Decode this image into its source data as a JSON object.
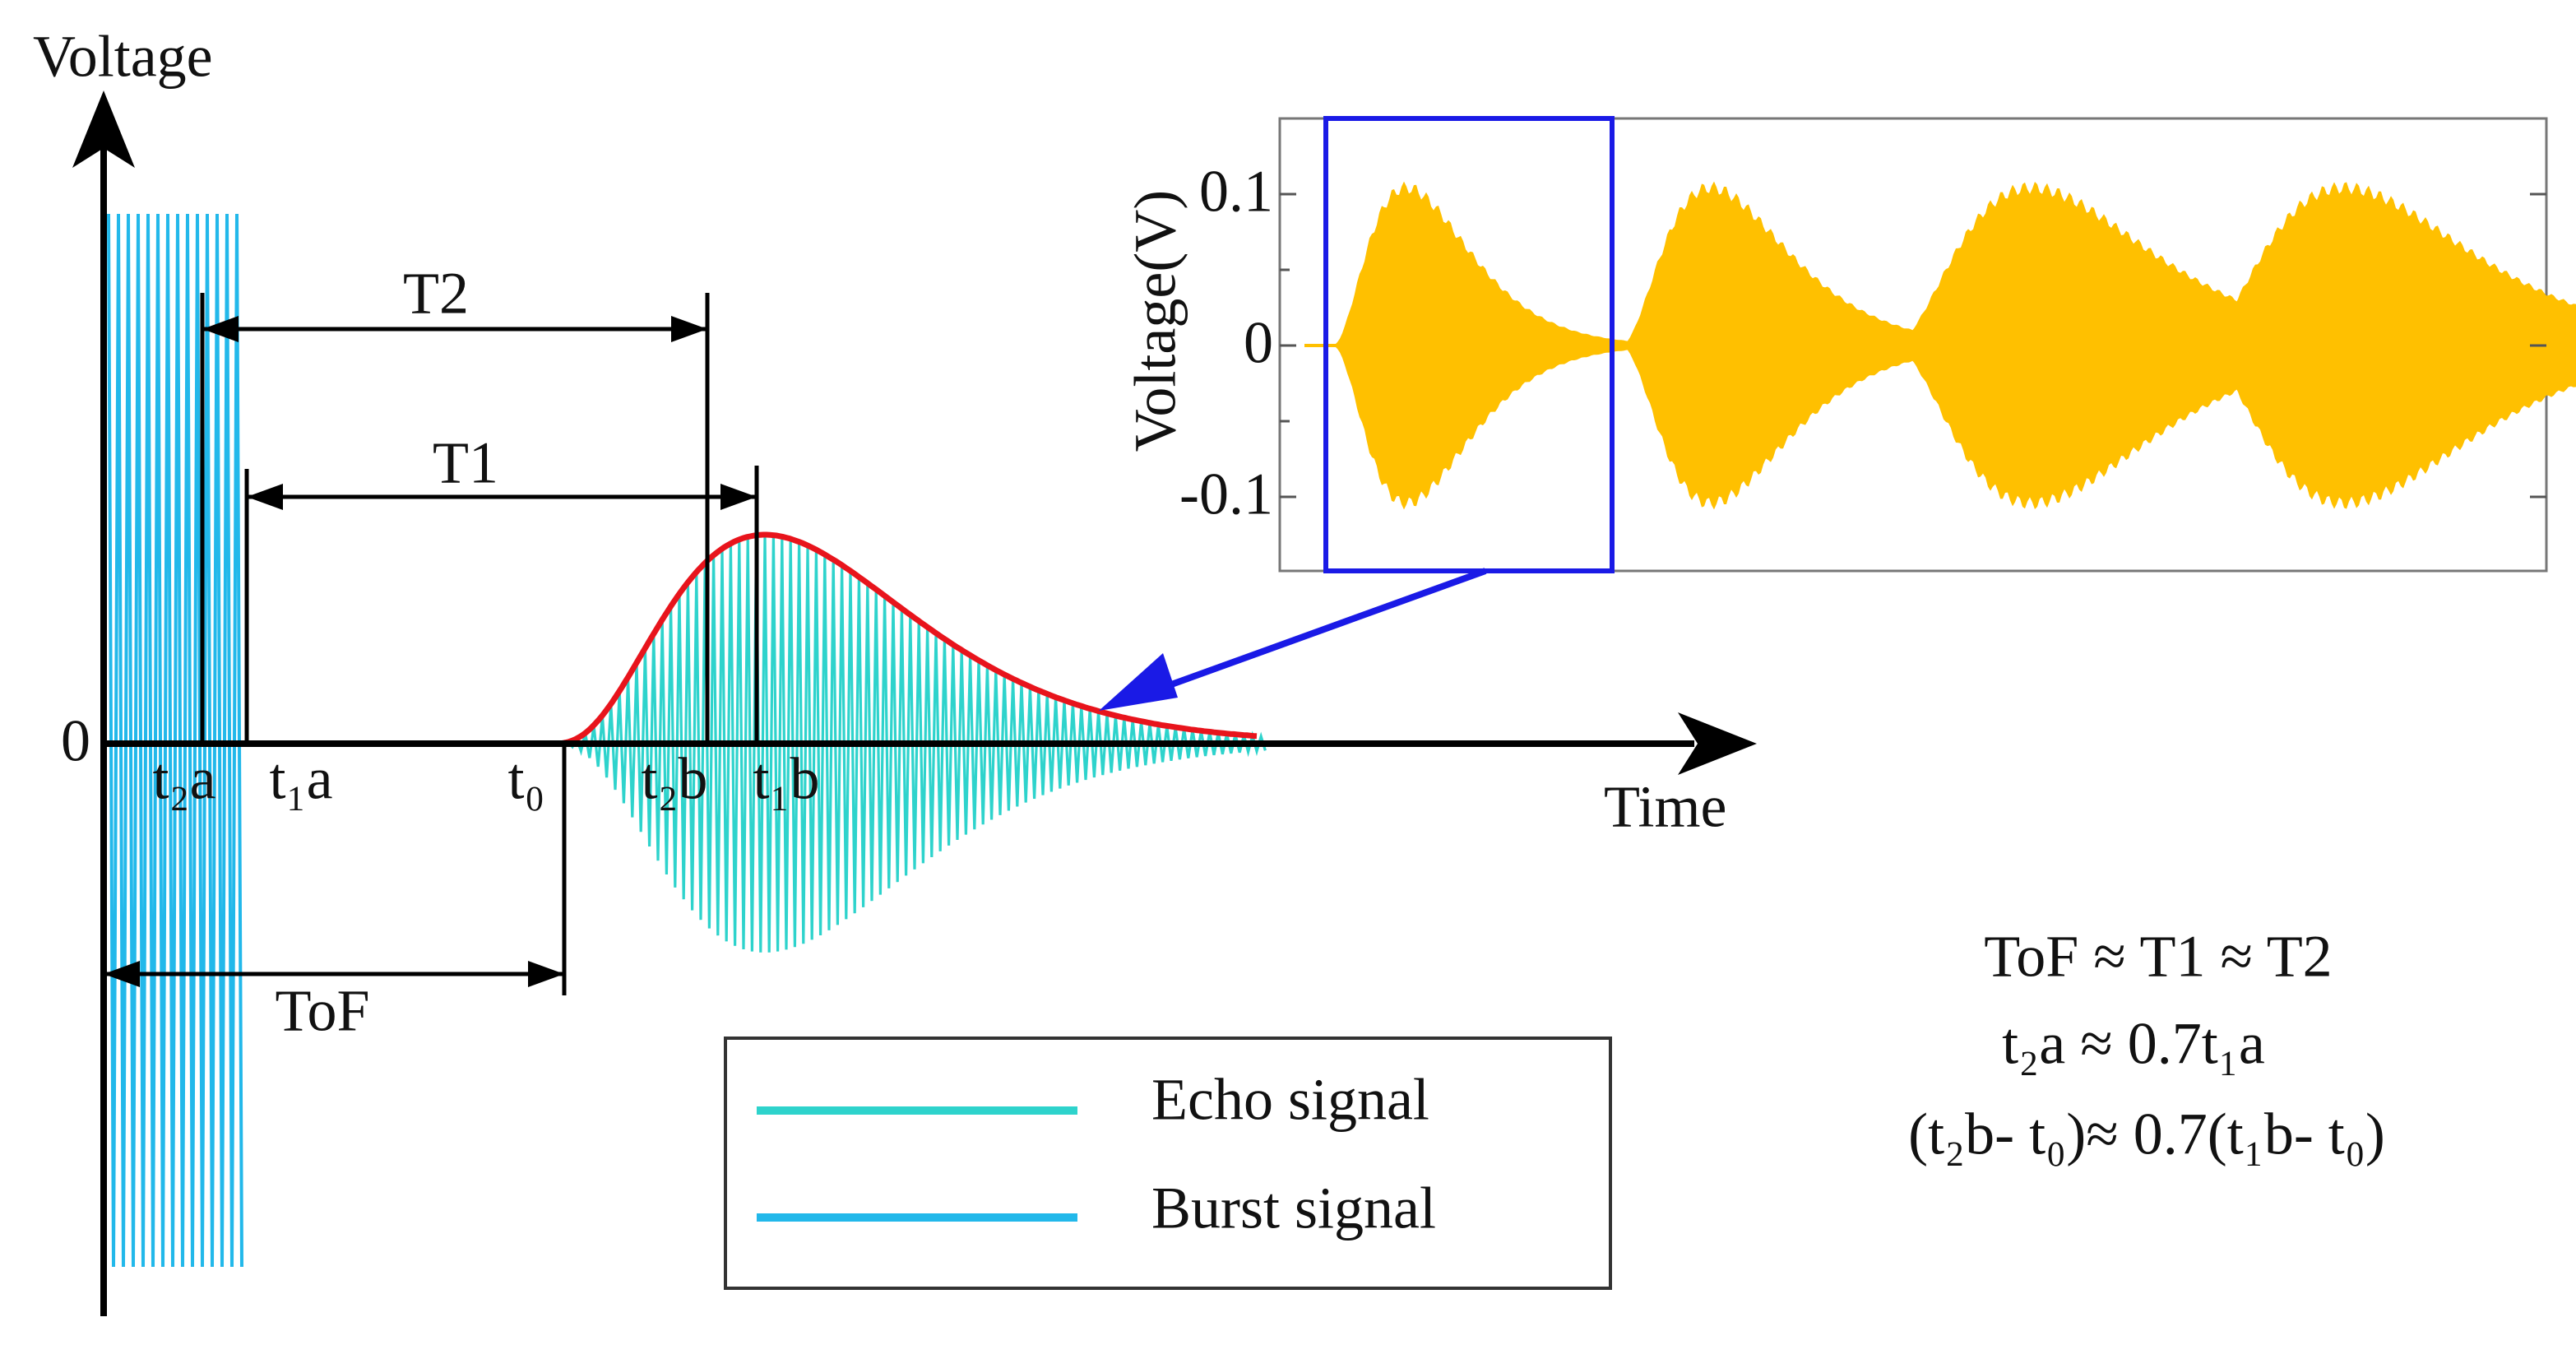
{
  "axes": {
    "y_label": "Voltage",
    "x_label": "Time",
    "origin_label": "0"
  },
  "intervals": {
    "t2": "T2",
    "t1": "T1",
    "tof": "ToF"
  },
  "markers": {
    "t2a": "t₂a",
    "t1a": "t₁a",
    "t0": "t₀",
    "t2b": "t₂b",
    "t1b": "t₁b"
  },
  "legend": {
    "echo": "Echo signal",
    "burst": "Burst signal"
  },
  "equations": [
    "ToF ≈ T1 ≈ T2",
    "t₂a ≈ 0.7t₁a",
    "(t₂b- t₀)≈ 0.7(t₁b- t₀)"
  ],
  "inset": {
    "y_label": "Voltage(V)",
    "y_tick_labels": [
      "0.1",
      "0",
      "-0.1"
    ]
  }
}
